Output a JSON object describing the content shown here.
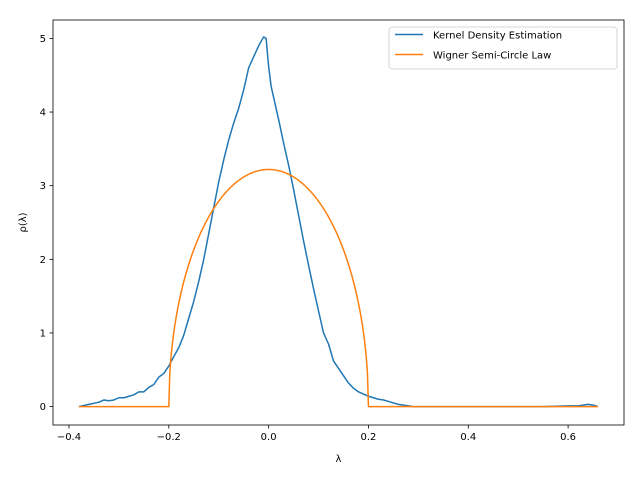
{
  "chart_data": {
    "type": "line",
    "title": "",
    "xlabel": "λ",
    "ylabel": "ρ(λ)",
    "xlim": [
      -0.432,
      0.712
    ],
    "ylim": [
      -0.25,
      5.25
    ],
    "xticks": [
      -0.4,
      -0.2,
      0.0,
      0.2,
      0.4,
      0.6
    ],
    "xtick_labels": [
      "−0.4",
      "−0.2",
      "0.0",
      "0.2",
      "0.4",
      "0.6"
    ],
    "yticks": [
      0,
      1,
      2,
      3,
      4,
      5
    ],
    "ytick_labels": [
      "0",
      "1",
      "2",
      "3",
      "4",
      "5"
    ],
    "grid": false,
    "legend_position": "top-right",
    "series": [
      {
        "name": "Kernel Density Estimation",
        "color": "#1f77b4",
        "x": [
          -0.38,
          -0.36,
          -0.34,
          -0.33,
          -0.32,
          -0.31,
          -0.3,
          -0.29,
          -0.28,
          -0.27,
          -0.26,
          -0.25,
          -0.24,
          -0.23,
          -0.22,
          -0.21,
          -0.2,
          -0.19,
          -0.18,
          -0.17,
          -0.16,
          -0.15,
          -0.14,
          -0.13,
          -0.12,
          -0.11,
          -0.1,
          -0.09,
          -0.08,
          -0.07,
          -0.06,
          -0.05,
          -0.04,
          -0.03,
          -0.02,
          -0.01,
          -0.005,
          0.0,
          0.005,
          0.01,
          0.02,
          0.03,
          0.04,
          0.05,
          0.06,
          0.07,
          0.08,
          0.09,
          0.1,
          0.11,
          0.12,
          0.13,
          0.14,
          0.15,
          0.16,
          0.17,
          0.18,
          0.19,
          0.2,
          0.21,
          0.22,
          0.23,
          0.24,
          0.25,
          0.26,
          0.27,
          0.28,
          0.29,
          0.3,
          0.31,
          0.32,
          0.33,
          0.34,
          0.35,
          0.36,
          0.4,
          0.45,
          0.5,
          0.55,
          0.6,
          0.62,
          0.63,
          0.64,
          0.65,
          0.66
        ],
        "y": [
          0.0,
          0.03,
          0.06,
          0.09,
          0.08,
          0.09,
          0.12,
          0.12,
          0.14,
          0.16,
          0.2,
          0.2,
          0.26,
          0.3,
          0.4,
          0.45,
          0.55,
          0.68,
          0.8,
          0.97,
          1.2,
          1.43,
          1.7,
          2.0,
          2.35,
          2.7,
          3.05,
          3.35,
          3.62,
          3.85,
          4.05,
          4.3,
          4.6,
          4.75,
          4.9,
          5.02,
          5.0,
          4.62,
          4.35,
          4.2,
          3.9,
          3.58,
          3.28,
          2.95,
          2.6,
          2.25,
          1.92,
          1.6,
          1.3,
          1.0,
          0.85,
          0.62,
          0.52,
          0.42,
          0.32,
          0.25,
          0.2,
          0.17,
          0.14,
          0.12,
          0.1,
          0.09,
          0.07,
          0.05,
          0.03,
          0.02,
          0.01,
          0.0,
          0.0,
          0.0,
          0.0,
          0.0,
          0.0,
          0.0,
          0.0,
          0.0,
          0.0,
          0.0,
          0.0,
          0.01,
          0.01,
          0.02,
          0.03,
          0.02,
          0.0
        ]
      },
      {
        "name": "Wigner Semi-Circle Law",
        "color": "#ff7f0e",
        "function": "semicircle",
        "radius": 0.2,
        "peak": 3.22,
        "x_range": [
          -0.38,
          0.66
        ]
      }
    ]
  }
}
